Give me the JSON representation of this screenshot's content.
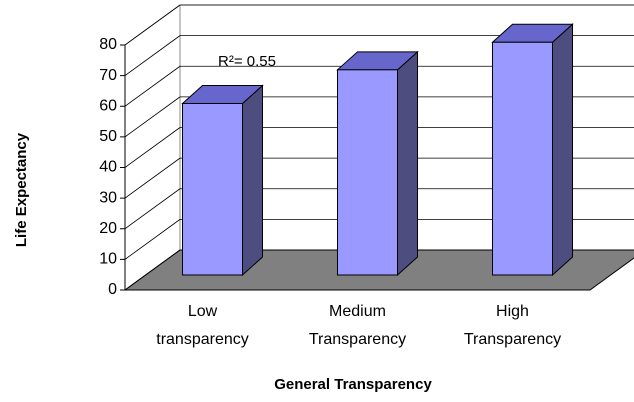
{
  "chart_data": {
    "type": "bar3d",
    "annotation": "R²= 0.55",
    "x_label": "General Transparency",
    "y_label": "Life Expectancy",
    "categories": [
      "Low transparency",
      "Medium Transparency",
      "High Transparency"
    ],
    "values": [
      56,
      67,
      76
    ],
    "color": "#9999ff",
    "ylim": [
      0,
      80
    ],
    "yticks": [
      0,
      10,
      20,
      30,
      40,
      50,
      60,
      70,
      80
    ],
    "grid": true
  }
}
